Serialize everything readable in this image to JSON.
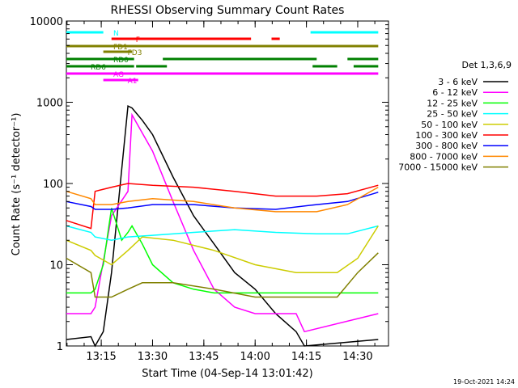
{
  "chart_data": {
    "type": "line",
    "title": "RHESSI Observing Summary Count Rates",
    "xlabel": "Start Time (04-Sep-14 13:01:42)",
    "ylabel": "Count Rate (s⁻¹ detector⁻¹)",
    "y_scale": "log",
    "ylim": [
      1,
      10000
    ],
    "xlim_minutes": [
      13.08,
      14.65
    ],
    "x_tick_labels": [
      "13:15",
      "13:30",
      "13:45",
      "14:00",
      "14:15",
      "14:30"
    ],
    "x_tick_hours": [
      13.25,
      13.5,
      13.75,
      14.0,
      14.25,
      14.5
    ],
    "y_tick_labels": [
      "1",
      "10",
      "100",
      "1000",
      "10000"
    ],
    "y_tick_values": [
      1,
      10,
      100,
      1000,
      10000
    ],
    "legend": {
      "title": "Det 1,3,6,9",
      "placement": "right"
    },
    "series": [
      {
        "name": "3 - 6 keV",
        "color": "#000000",
        "x": [
          13.08,
          13.2,
          13.22,
          13.26,
          13.3,
          13.38,
          13.4,
          13.45,
          13.5,
          13.6,
          13.7,
          13.8,
          13.9,
          14.0,
          14.1,
          14.2,
          14.24,
          14.6
        ],
        "values": [
          1.2,
          1.3,
          1.0,
          1.5,
          8,
          900,
          850,
          600,
          400,
          120,
          40,
          18,
          8,
          5,
          2.5,
          1.5,
          1.0,
          1.2
        ]
      },
      {
        "name": "6 - 12 keV",
        "color": "#ff00ff",
        "x": [
          13.08,
          13.2,
          13.22,
          13.3,
          13.38,
          13.4,
          13.5,
          13.6,
          13.7,
          13.8,
          13.9,
          14.0,
          14.2,
          14.24,
          14.6
        ],
        "values": [
          2.5,
          2.5,
          3,
          40,
          80,
          700,
          250,
          60,
          15,
          5,
          3,
          2.5,
          2.5,
          1.5,
          2.5
        ]
      },
      {
        "name": "12 - 25 keV",
        "color": "#00ff00",
        "x": [
          13.08,
          13.2,
          13.22,
          13.26,
          13.3,
          13.35,
          13.38,
          13.4,
          13.45,
          13.5,
          13.6,
          13.7,
          13.8,
          14.0,
          14.2,
          14.3,
          14.5,
          14.6
        ],
        "values": [
          4.5,
          4.5,
          5,
          10,
          50,
          20,
          25,
          30,
          18,
          10,
          6,
          5,
          4.5,
          4.5,
          4.5,
          4.5,
          4.5,
          4.5
        ]
      },
      {
        "name": "25 - 50 keV",
        "color": "#00ffff",
        "x": [
          13.08,
          13.2,
          13.22,
          13.3,
          13.38,
          13.5,
          13.7,
          13.9,
          14.1,
          14.3,
          14.45,
          14.6
        ],
        "values": [
          30,
          25,
          22,
          20,
          22,
          23,
          25,
          27,
          25,
          24,
          24,
          30
        ]
      },
      {
        "name": "50 - 100 keV",
        "color": "#cccc00",
        "x": [
          13.08,
          13.2,
          13.22,
          13.3,
          13.38,
          13.45,
          13.6,
          13.8,
          14.0,
          14.2,
          14.4,
          14.5,
          14.6
        ],
        "values": [
          20,
          15,
          13,
          10,
          15,
          22,
          20,
          15,
          10,
          8,
          8,
          12,
          30
        ]
      },
      {
        "name": "100 - 300 keV",
        "color": "#ff0000",
        "x": [
          13.08,
          13.2,
          13.22,
          13.3,
          13.38,
          13.5,
          13.7,
          13.9,
          14.1,
          14.3,
          14.45,
          14.6
        ],
        "values": [
          35,
          28,
          80,
          90,
          100,
          95,
          90,
          80,
          70,
          70,
          75,
          95
        ]
      },
      {
        "name": "300 - 800 keV",
        "color": "#0000ff",
        "x": [
          13.08,
          13.2,
          13.22,
          13.3,
          13.38,
          13.5,
          13.7,
          13.9,
          14.1,
          14.3,
          14.45,
          14.6
        ],
        "values": [
          60,
          52,
          48,
          48,
          50,
          55,
          55,
          50,
          48,
          55,
          60,
          78
        ]
      },
      {
        "name": "800 - 7000 keV",
        "color": "#ff8800",
        "x": [
          13.08,
          13.2,
          13.22,
          13.3,
          13.38,
          13.5,
          13.7,
          13.9,
          14.1,
          14.3,
          14.45,
          14.6
        ],
        "values": [
          80,
          65,
          55,
          55,
          60,
          65,
          60,
          50,
          45,
          45,
          55,
          90
        ]
      },
      {
        "name": "7000 - 15000 keV",
        "color": "#808000",
        "x": [
          13.08,
          13.2,
          13.22,
          13.3,
          13.38,
          13.45,
          13.6,
          13.8,
          14.0,
          14.2,
          14.4,
          14.5,
          14.6
        ],
        "values": [
          12,
          8,
          4,
          4,
          5,
          6,
          6,
          5,
          4,
          4,
          4,
          8,
          14
        ]
      }
    ],
    "flag_rows": [
      {
        "label": "N",
        "color": "#00ffff",
        "segments": [
          [
            13.08,
            13.26
          ],
          [
            14.27,
            14.6
          ]
        ]
      },
      {
        "label": "F",
        "color": "#ff0000",
        "segments": [
          [
            13.3,
            13.98
          ],
          [
            14.08,
            14.12
          ]
        ]
      },
      {
        "label": "FD1",
        "color": "#808000",
        "segments": [
          [
            13.08,
            14.6
          ]
        ]
      },
      {
        "label": "FD3",
        "color": "#808000",
        "segments": [
          [
            13.26,
            13.4
          ]
        ]
      },
      {
        "label": "RD0",
        "color": "#008000",
        "segments": [
          [
            13.08,
            13.41
          ],
          [
            13.55,
            14.3
          ],
          [
            14.45,
            14.6
          ]
        ]
      },
      {
        "label": "RD6",
        "color": "#008000",
        "segments": [
          [
            13.08,
            13.41
          ],
          [
            13.42,
            13.57
          ],
          [
            14.28,
            14.4
          ],
          [
            14.48,
            14.6
          ]
        ]
      },
      {
        "label": "AG",
        "color": "#ff00ff",
        "segments": [
          [
            13.08,
            14.6
          ]
        ]
      },
      {
        "label": "A1",
        "color": "#ff00ff",
        "segments": [
          [
            13.26,
            13.43
          ]
        ]
      }
    ],
    "footer_timestamp": "19-Oct-2021 14:24"
  }
}
